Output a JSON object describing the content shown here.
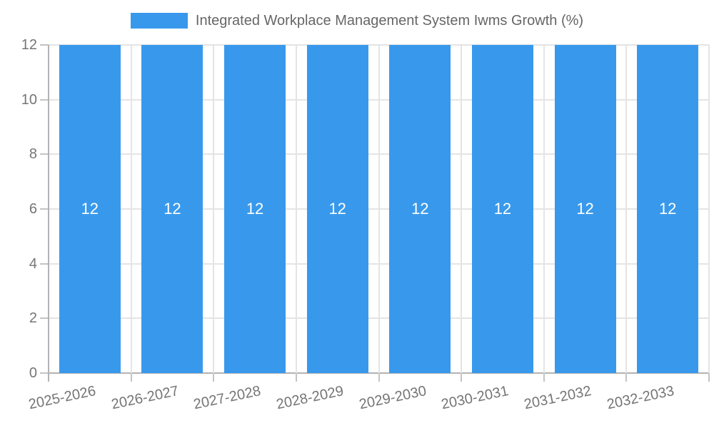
{
  "legend": {
    "label": "Integrated Workplace Management System Iwms Growth (%)"
  },
  "chart_data": {
    "type": "bar",
    "title": "Integrated Workplace Management System Iwms Growth (%)",
    "categories": [
      "2025-2026",
      "2026-2027",
      "2027-2028",
      "2028-2029",
      "2029-2030",
      "2030-2031",
      "2031-2032",
      "2032-2033"
    ],
    "values": [
      12,
      12,
      12,
      12,
      12,
      12,
      12,
      12
    ],
    "bar_value_labels": [
      "12",
      "12",
      "12",
      "12",
      "12",
      "12",
      "12",
      "12"
    ],
    "xlabel": "",
    "ylabel": "",
    "ylim": [
      0,
      12
    ],
    "yticks": [
      0,
      2,
      4,
      6,
      8,
      10,
      12
    ],
    "grid": true,
    "legend_position": "top-center",
    "x_label_rotation_deg": -12
  },
  "colors": {
    "bar": "#3899ec",
    "grid": "#e4e4e4",
    "axis": "#b3b3b3",
    "tick": "#c4c4c4",
    "label": "#757575",
    "legend_text": "#666666",
    "bar_label": "#ffffff",
    "background": "#ffffff"
  }
}
